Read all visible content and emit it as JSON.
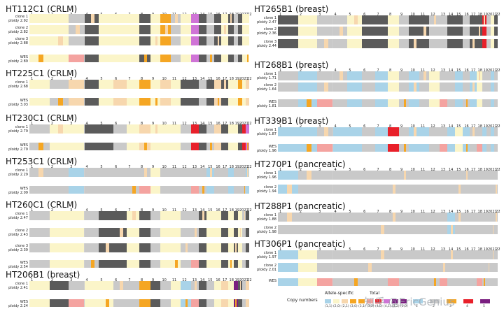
{
  "palette": {
    "gray": "#c9c9c9",
    "dark": "#5b5b5b",
    "cream": "#fbf5c9",
    "peach": "#f7d7ae",
    "orange": "#f5a623",
    "blue": "#a9d3e8",
    "red": "#e8202a",
    "pink": "#f4a3a0",
    "magenta": "#cf74d6",
    "purple": "#7a1f80"
  },
  "legend": {
    "title": "Copy numbers",
    "allele": "Allele-specific",
    "total": "Total",
    "captions": [
      "(1,1)",
      "(2,0)",
      "(2,1)",
      "(3,0)",
      "(3,1)",
      "(3,2)",
      "(4,0)",
      "(4,1)",
      "(4,2)",
      "(5,0)"
    ],
    "totals": [
      "1",
      "2",
      "3",
      "4",
      "5"
    ]
  },
  "watermark": "知乎 @EricGenius",
  "panels": [
    {
      "title": "HT112C1 (CRLM)",
      "rows": [
        {
          "name": "clone 1",
          "ploidy": "ploidy 2.92"
        },
        {
          "name": "clone 2",
          "ploidy": "ploidy 2.82"
        },
        {
          "name": "clone 3",
          "ploidy": "ploidy 2.88"
        },
        {
          "name": "WES",
          "ploidy": "ploidy 2.89"
        }
      ]
    },
    {
      "title": "HT225C1 (CRLM)",
      "rows": [
        {
          "name": "clone 1",
          "ploidy": "ploidy 2.68"
        },
        {
          "name": "WES",
          "ploidy": "ploidy 3.03"
        }
      ]
    },
    {
      "title": "HT230C1 (CRLM)",
      "rows": [
        {
          "name": "clone 1",
          "ploidy": "ploidy 2.79"
        },
        {
          "name": "WES",
          "ploidy": "ploidy 2.79"
        }
      ]
    },
    {
      "title": "HT253C1 (CRLM)",
      "rows": [
        {
          "name": "clone 1",
          "ploidy": "ploidy 2.29"
        },
        {
          "name": "WES",
          "ploidy": "ploidy 2.09"
        }
      ]
    },
    {
      "title": "HT260C1 (CRLM)",
      "rows": [
        {
          "name": "clone 1",
          "ploidy": "ploidy 2.47"
        },
        {
          "name": "clone 2",
          "ploidy": "ploidy 2.43"
        },
        {
          "name": "clone 3",
          "ploidy": "ploidy 2.39"
        },
        {
          "name": "WES",
          "ploidy": "ploidy 2.54"
        }
      ]
    },
    {
      "title": "HT206B1 (breast)",
      "rows": [
        {
          "name": "clone 1",
          "ploidy": "ploidy 2.41"
        },
        {
          "name": "WES",
          "ploidy": "ploidy 2.24"
        }
      ]
    },
    {
      "title": "HT265B1 (breast)",
      "rows": [
        {
          "name": "clone 1",
          "ploidy": "ploidy 2.47"
        },
        {
          "name": "clone 2",
          "ploidy": "ploidy 2.36"
        },
        {
          "name": "clone 3",
          "ploidy": "ploidy 2.44"
        }
      ]
    },
    {
      "title": "HT268B1 (breast)",
      "rows": [
        {
          "name": "clone 1",
          "ploidy": "ploidy 1.71"
        },
        {
          "name": "clone 2",
          "ploidy": "ploidy 1.64"
        },
        {
          "name": "WES",
          "ploidy": "ploidy 1.81"
        }
      ]
    },
    {
      "title": "HT339B1 (breast)",
      "rows": [
        {
          "name": "clone 1",
          "ploidy": "ploidy 1.87"
        },
        {
          "name": "WES",
          "ploidy": "ploidy 1.96"
        }
      ]
    },
    {
      "title": "HT270P1 (pancreatic)",
      "rows": [
        {
          "name": "clone 1",
          "ploidy": "ploidy 1.96"
        },
        {
          "name": "clone 2",
          "ploidy": "ploidy 1.94"
        }
      ]
    },
    {
      "title": "HT288P1 (pancreatic)",
      "rows": [
        {
          "name": "clone 1",
          "ploidy": "ploidy 1.88"
        },
        {
          "name": "clone 2",
          "ploidy": "ploidy 1.98"
        }
      ]
    },
    {
      "title": "HT306P1 (pancreatic)",
      "rows": [
        {
          "name": "clone 1",
          "ploidy": "ploidy 1.97"
        },
        {
          "name": "clone 2",
          "ploidy": "ploidy 2.01"
        },
        {
          "name": "WES",
          "ploidy": ""
        }
      ]
    }
  ],
  "chromosomes": [
    "1",
    "2",
    "3",
    "4",
    "5",
    "6",
    "7",
    "8",
    "9",
    "10",
    "11",
    "12",
    "13",
    "14",
    "15",
    "16",
    "17",
    "18",
    "19",
    "20",
    "21",
    "22"
  ]
}
